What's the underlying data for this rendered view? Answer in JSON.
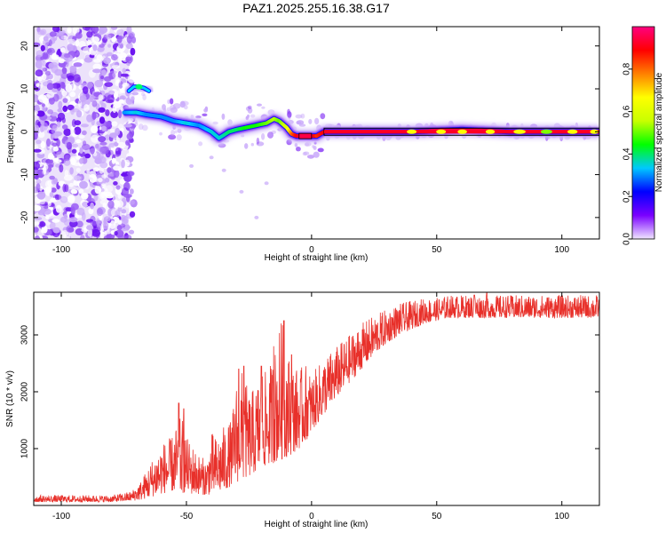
{
  "figure_title": "PAZ1.2025.255.16.38.G17",
  "chart_data": [
    {
      "type": "heatmap",
      "title": "PAZ1.2025.255.16.38.G17",
      "xlabel": "Height of straight line (km)",
      "ylabel": "Frequency (Hz)",
      "xlim": [
        -111,
        115
      ],
      "ylim": [
        -25,
        24.5
      ],
      "xticks": [
        -100,
        -50,
        0,
        50,
        100
      ],
      "xtick_labels": [
        "-100",
        "-50",
        "0",
        "50",
        "100"
      ],
      "yticks": [
        -20,
        -10,
        0,
        10,
        20
      ],
      "ytick_labels": [
        "-20",
        "-10",
        "0",
        "10",
        "20"
      ],
      "colorbar": {
        "label": "Normalized spectral amplitude",
        "range": [
          0,
          1
        ],
        "ticks": [
          0.0,
          0.2,
          0.4,
          0.6,
          0.8
        ],
        "tick_labels": [
          "0.0",
          "0.2",
          "0.4",
          "0.6",
          "0.8"
        ],
        "colors": [
          "#f0e6ff",
          "#7a00ff",
          "#0000ff",
          "#00c8ff",
          "#00ff00",
          "#c8ff00",
          "#ffff00",
          "#ff8000",
          "#ff0000",
          "#ff0080"
        ]
      },
      "noise_region_x": [
        -111,
        -73
      ],
      "dominant_frequency": {
        "x": [
          -75,
          -70,
          -66,
          -60,
          -55,
          -50,
          -45,
          -40,
          -37,
          -33,
          -30,
          -26,
          -22,
          -18,
          -15,
          -13,
          -10,
          -8,
          -6,
          -4,
          -2,
          0,
          2,
          5,
          8,
          20,
          40,
          60,
          80,
          100,
          115
        ],
        "y": [
          4.5,
          4.5,
          4,
          3.5,
          2.5,
          2,
          1.5,
          0,
          -1.5,
          0,
          0.5,
          1,
          1.5,
          2,
          3,
          2.5,
          1,
          -0.5,
          -1,
          -1,
          -1,
          -1,
          -1,
          0,
          0,
          0,
          0,
          0.5,
          0,
          0,
          0
        ],
        "amplitude": [
          0.3,
          0.35,
          0.3,
          0.3,
          0.3,
          0.35,
          0.3,
          0.35,
          0.35,
          0.4,
          0.4,
          0.45,
          0.45,
          0.5,
          0.55,
          0.5,
          0.6,
          0.8,
          0.9,
          0.95,
          0.95,
          0.95,
          0.85,
          0.9,
          0.95,
          0.95,
          0.95,
          0.95,
          0.95,
          0.95,
          0.95
        ]
      },
      "secondary_feature": {
        "x": [
          -73,
          -71,
          -69,
          -67,
          -65
        ],
        "y": [
          9.5,
          10.5,
          10.5,
          10.2,
          9.5
        ]
      }
    },
    {
      "type": "line",
      "xlabel": "Height of straight line (km)",
      "ylabel": "SNR (10 * v/v)",
      "xlim": [
        -111,
        115
      ],
      "ylim": [
        0,
        3750
      ],
      "xticks": [
        -100,
        -50,
        0,
        50,
        100
      ],
      "xtick_labels": [
        "-100",
        "-50",
        "0",
        "50",
        "100"
      ],
      "yticks": [
        1000,
        2000,
        3000
      ],
      "ytick_labels": [
        "1000",
        "2000",
        "3000"
      ],
      "line_color": "#e8302a",
      "envelope": {
        "x": [
          -111,
          -80,
          -72,
          -68,
          -64,
          -60,
          -56,
          -52,
          -50,
          -48,
          -45,
          -42,
          -40,
          -38,
          -35,
          -32,
          -30,
          -28,
          -25,
          -22,
          -20,
          -18,
          -15,
          -12,
          -10,
          -8,
          -5,
          -2,
          0,
          5,
          10,
          15,
          20,
          25,
          30,
          35,
          40,
          45,
          50,
          55,
          60,
          65,
          70,
          75,
          80,
          90,
          100,
          110,
          115
        ],
        "low": [
          60,
          60,
          80,
          100,
          150,
          200,
          250,
          200,
          250,
          200,
          200,
          180,
          200,
          220,
          250,
          350,
          400,
          450,
          500,
          600,
          650,
          700,
          750,
          800,
          850,
          900,
          1000,
          1150,
          1300,
          1600,
          1900,
          2150,
          2400,
          2650,
          2850,
          3000,
          3100,
          3200,
          3250,
          3300,
          3300,
          3300,
          3300,
          3300,
          3300,
          3300,
          3300,
          3300,
          3300
        ],
        "high": [
          180,
          180,
          250,
          450,
          800,
          1100,
          1200,
          1600,
          1200,
          1100,
          900,
          800,
          1300,
          1200,
          1400,
          1500,
          2200,
          2400,
          2000,
          2100,
          2500,
          2300,
          2700,
          3300,
          2800,
          2500,
          2400,
          2500,
          2300,
          2600,
          2800,
          3000,
          3200,
          3350,
          3450,
          3550,
          3600,
          3650,
          3650,
          3700,
          3700,
          3700,
          3700,
          3700,
          3700,
          3700,
          3700,
          3700,
          3700
        ]
      },
      "spikes": [
        {
          "x": -53,
          "y": 1800
        },
        {
          "x": -51,
          "y": 1700
        },
        {
          "x": -29,
          "y": 2400
        },
        {
          "x": -27,
          "y": 2450
        },
        {
          "x": -20,
          "y": 2450
        },
        {
          "x": -15,
          "y": 2800
        },
        {
          "x": -11,
          "y": 3250
        },
        {
          "x": -8,
          "y": 2650
        },
        {
          "x": 65,
          "y": 3700
        },
        {
          "x": 70,
          "y": 3750
        }
      ]
    }
  ]
}
